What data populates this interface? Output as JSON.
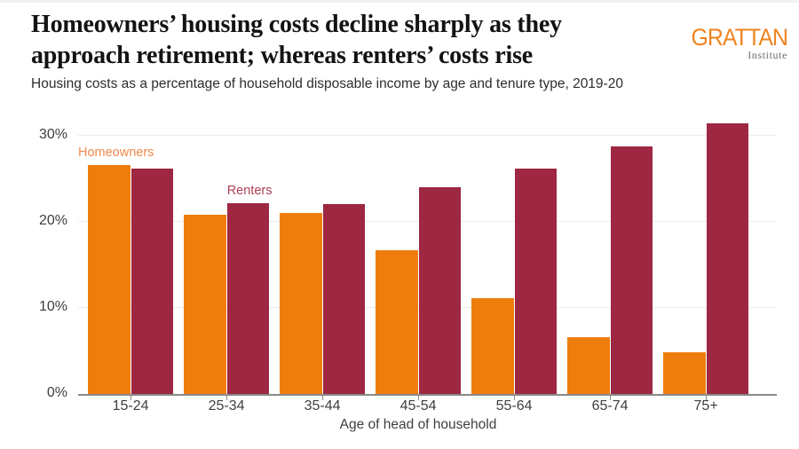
{
  "colors": {
    "homeowners": "#EE7D0E",
    "renters": "#9E2742",
    "homeowners_label": "#F08A4B",
    "renters_label": "#AE4156",
    "grid": "#EBEBEB",
    "axis": "#8A8A8A",
    "text": "#3F3F3F",
    "title": "#131313",
    "subtitle": "#2D2D2D",
    "logo_orange": "#F0831F",
    "logo_gray": "#6F6F6F",
    "edge": "#F2F2F2"
  },
  "header": {
    "title_lines": [
      "Homeowners’ housing costs decline sharply as they",
      "approach retirement; whereas renters’ costs rise"
    ],
    "subtitle": "Housing costs as a percentage of household disposable income by age and tenure type, 2019-20",
    "logo_name": "GRATTAN",
    "logo_sub": "Institute"
  },
  "chart_data": {
    "type": "bar",
    "title": "Homeowners’ housing costs decline sharply as they approach retirement; whereas renters’ costs rise",
    "subtitle": "Housing costs as a percentage of household disposable income by age and tenure type, 2019-20",
    "categories": [
      "15-24",
      "25-34",
      "35-44",
      "45-54",
      "55-64",
      "65-74",
      "75+"
    ],
    "series": [
      {
        "name": "Homeowners",
        "color": "#EE7D0E",
        "values": [
          26.6,
          20.8,
          21.1,
          16.7,
          11.1,
          6.6,
          4.8
        ]
      },
      {
        "name": "Renters",
        "color": "#9E2742",
        "values": [
          26.2,
          22.2,
          22.1,
          24.0,
          26.2,
          28.8,
          31.5
        ]
      }
    ],
    "xlabel": "Age of head of household",
    "ylabel": "",
    "ylim": [
      0,
      32.4
    ],
    "yticks": [
      0,
      10,
      20,
      30
    ],
    "ytick_labels": [
      "0%",
      "10%",
      "20%",
      "30%"
    ],
    "grid": true,
    "legend": {
      "type": "direct-labels",
      "labels": [
        "Homeowners",
        "Renters"
      ]
    }
  }
}
